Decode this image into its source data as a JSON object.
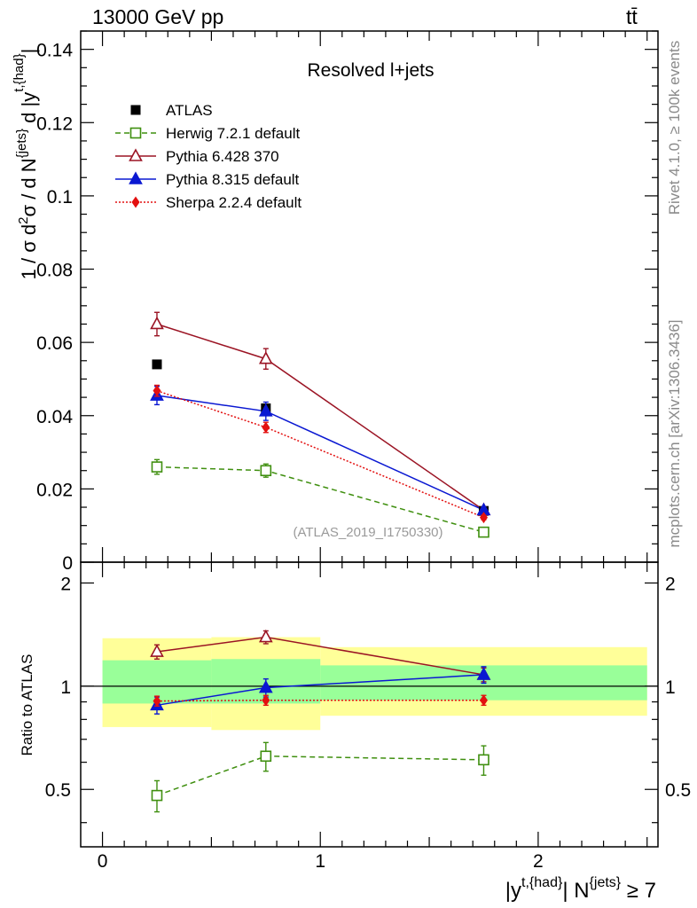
{
  "header": {
    "left": "13000 GeV pp",
    "right": "tt̄"
  },
  "side_labels": {
    "rivet": "Rivet 4.1.0, ≥ 100k events",
    "mcplots": "mcplots.cern.ch [arXiv:1306.3436]"
  },
  "chart_data": [
    {
      "panel": "main",
      "type": "scatter",
      "title": "Resolved l+jets",
      "watermark": "(ATLAS_2019_I1750330)",
      "ylabel": "1 / σ d²σ / d N^{jets} d |y^{t,{had}}|",
      "xlim": [
        -0.1,
        2.55
      ],
      "ylim": [
        0,
        0.145
      ],
      "yticks": [
        0,
        0.02,
        0.04,
        0.06,
        0.08,
        0.1,
        0.12,
        0.14
      ],
      "ytick_labels": [
        "0",
        "0.02",
        "0.04",
        "0.06",
        "0.08",
        "0.1",
        "0.12",
        "0.14"
      ],
      "x": [
        0.25,
        0.75,
        1.75
      ],
      "series": [
        {
          "name": "ATLAS",
          "color": "#000000",
          "marker": "square-filled",
          "line": "none",
          "values": [
            0.054,
            0.042,
            0.014
          ],
          "errors": [
            0.0008,
            0.0008,
            0.0006
          ]
        },
        {
          "name": "Herwig 7.2.1 default",
          "color": "#3f8f0f",
          "marker": "square-open",
          "line": "dashed",
          "values": [
            0.026,
            0.025,
            0.0082
          ],
          "errors": [
            0.002,
            0.0018,
            0.0008
          ]
        },
        {
          "name": "Pythia 6.428 370",
          "color": "#9b1424",
          "marker": "triangle-open",
          "line": "solid",
          "values": [
            0.065,
            0.0555,
            0.0142
          ],
          "errors": [
            0.0032,
            0.0028,
            0.0009
          ]
        },
        {
          "name": "Pythia 8.315 default",
          "color": "#0a18d2",
          "marker": "triangle-filled",
          "line": "solid",
          "values": [
            0.0455,
            0.0412,
            0.0142
          ],
          "errors": [
            0.0025,
            0.0025,
            0.0008
          ]
        },
        {
          "name": "Sherpa 2.2.4 default",
          "color": "#e31010",
          "marker": "diamond-filled",
          "line": "dotted",
          "values": [
            0.0468,
            0.0368,
            0.0122
          ],
          "errors": [
            0.0015,
            0.0014,
            0.0006
          ]
        }
      ]
    },
    {
      "panel": "ratio",
      "type": "scatter",
      "ylabel": "Ratio to ATLAS",
      "xlabel": "|y^{t,{had}}| N^{jets} ≥ 7",
      "xlim": [
        -0.1,
        2.55
      ],
      "ylim": [
        0.34,
        2.3
      ],
      "ylog": true,
      "yticks": [
        0.5,
        1,
        2
      ],
      "ytick_labels": [
        "0.5",
        "1",
        "2"
      ],
      "xticks": [
        0,
        1,
        2
      ],
      "xtick_labels": [
        "0",
        "1",
        "2"
      ],
      "x": [
        0.25,
        0.75,
        1.75
      ],
      "bands": [
        {
          "x0": 0.0,
          "x1": 0.5,
          "yellow": [
            0.76,
            1.38
          ],
          "green": [
            0.89,
            1.19
          ]
        },
        {
          "x0": 0.5,
          "x1": 1.0,
          "yellow": [
            0.745,
            1.39
          ],
          "green": [
            0.89,
            1.2
          ]
        },
        {
          "x0": 1.0,
          "x1": 2.5,
          "yellow": [
            0.82,
            1.3
          ],
          "green": [
            0.91,
            1.15
          ]
        }
      ],
      "series": [
        {
          "name": "Herwig 7.2.1 default",
          "values": [
            0.48,
            0.625,
            0.61
          ],
          "errors": [
            0.05,
            0.06,
            0.06
          ]
        },
        {
          "name": "Pythia 6.428 370",
          "values": [
            1.26,
            1.39,
            1.08
          ],
          "errors": [
            0.06,
            0.06,
            0.05
          ]
        },
        {
          "name": "Pythia 8.315 default",
          "values": [
            0.88,
            0.99,
            1.08
          ],
          "errors": [
            0.05,
            0.06,
            0.06
          ]
        },
        {
          "name": "Sherpa 2.2.4 default",
          "values": [
            0.905,
            0.91,
            0.91
          ],
          "errors": [
            0.03,
            0.03,
            0.03
          ]
        }
      ]
    }
  ]
}
